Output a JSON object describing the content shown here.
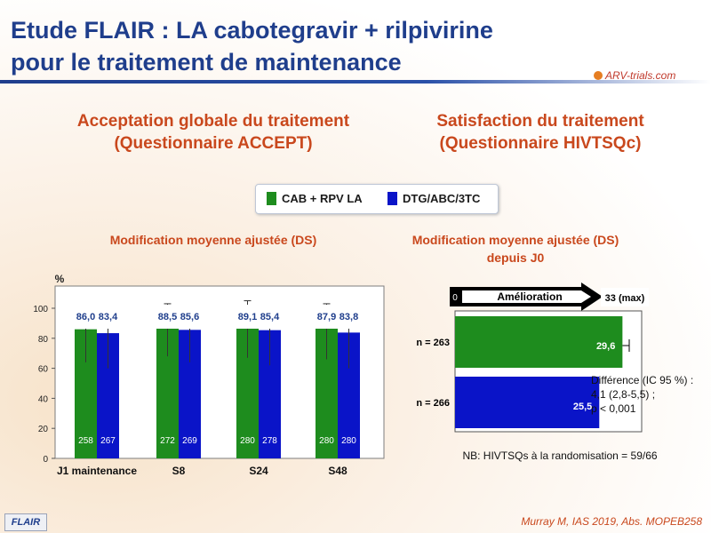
{
  "slide": {
    "title_line1": "Etude FLAIR : LA cabotegravir + rilpivirine",
    "title_line2": "pour le traitement de maintenance",
    "logo_text": "ARV-trials.com",
    "left_heading_1": "Acceptation globale du traitement",
    "left_heading_2": "(Questionnaire ACCEPT)",
    "right_heading_1": "Satisfaction du traitement",
    "right_heading_2": "(Questionnaire HIVTSQc)",
    "left_sub": "Modification  moyenne ajustée (DS)",
    "right_sub_1": "Modification  moyenne ajustée (DS)",
    "right_sub_2": "depuis J0",
    "legend": [
      {
        "label": "CAB + RPV LA",
        "color": "#1e8c1e"
      },
      {
        "label": "DTG/ABC/3TC",
        "color": "#0a14c8"
      }
    ],
    "footer_tag": "FLAIR",
    "citation": "Murray M, IAS 2019, Abs. MOPEB258"
  },
  "chart_data": [
    {
      "type": "bar",
      "ylabel": "%",
      "ylim": [
        0,
        100
      ],
      "yticks": [
        0,
        20,
        40,
        60,
        80,
        100
      ],
      "categories": [
        "J1 maintenance",
        "S8",
        "S24",
        "S48"
      ],
      "n_prefix": "n =",
      "series": [
        {
          "name": "CAB + RPV LA",
          "color": "#1e8c1e",
          "values": [
            86.0,
            88.5,
            89.1,
            87.9
          ],
          "labels": [
            "86,0",
            "88,5",
            "89,1",
            "87,9"
          ],
          "n": [
            "258",
            "272",
            "280",
            "280"
          ],
          "sd_low": [
            64,
            68,
            67,
            66
          ],
          "sd_high": [
            101,
            103,
            105,
            103
          ]
        },
        {
          "name": "DTG/ABC/3TC",
          "color": "#0a14c8",
          "values": [
            83.4,
            85.6,
            85.4,
            83.8
          ],
          "labels": [
            "83,4",
            "85,6",
            "85,4",
            "83,8"
          ],
          "n": [
            "267",
            "269",
            "278",
            "280"
          ],
          "sd_low": [
            60,
            64,
            62,
            60
          ],
          "sd_high": [
            100,
            102,
            102,
            101
          ]
        }
      ]
    },
    {
      "type": "bar",
      "orientation": "horizontal",
      "xlim": [
        0,
        33
      ],
      "axis_start": "0",
      "axis_mid": "Amélioration",
      "axis_end": "33 (max)",
      "bars": [
        {
          "series": "CAB + RPV LA",
          "n_label": "n = 263",
          "value": 29.6,
          "label": "29,6",
          "color": "#1e8c1e",
          "err_high": 30.8
        },
        {
          "series": "DTG/ABC/3TC",
          "n_label": "n = 266",
          "value": 25.5,
          "label": "25,5",
          "color": "#0a14c8"
        }
      ],
      "annotation": [
        "Différence (IC 95 %) :",
        "4,1 (2,8-5,5) ;",
        "p < 0,001"
      ],
      "note": "NB: HIVTSQs à la randomisation = 59/66"
    }
  ]
}
